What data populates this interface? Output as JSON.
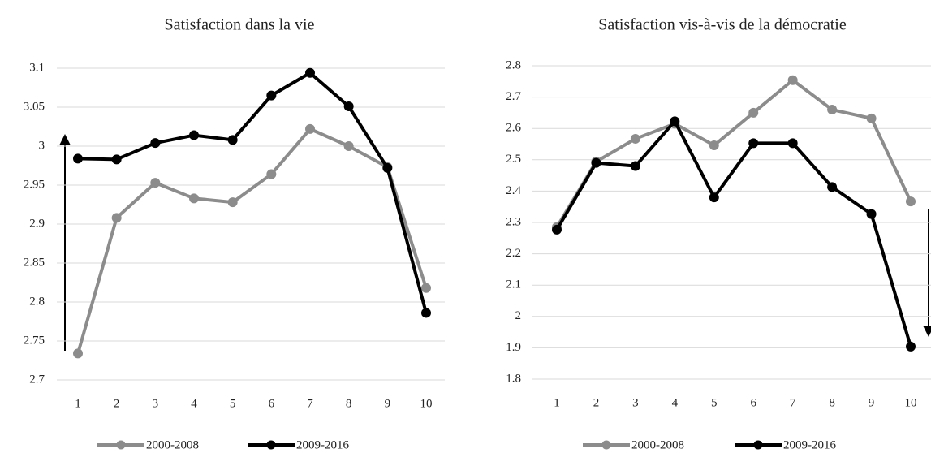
{
  "chart_data": [
    {
      "type": "line",
      "title": "Satisfaction dans la vie",
      "categories": [
        "1",
        "2",
        "3",
        "4",
        "5",
        "6",
        "7",
        "8",
        "9",
        "10"
      ],
      "series": [
        {
          "name": "2000-2008",
          "color": "#8c8c8c",
          "values": [
            2.734,
            2.908,
            2.953,
            2.933,
            2.928,
            2.964,
            3.022,
            3.0,
            2.973,
            2.818
          ]
        },
        {
          "name": "2009-2016",
          "color": "#000000",
          "values": [
            2.984,
            2.983,
            3.004,
            3.014,
            3.008,
            3.065,
            3.094,
            3.051,
            2.972,
            2.786
          ]
        }
      ],
      "ylim": [
        2.7,
        3.1
      ],
      "yticks": [
        2.7,
        2.75,
        2.8,
        2.85,
        2.9,
        2.95,
        3,
        3.05,
        3.1
      ],
      "grid": true,
      "legend": "bottom"
    },
    {
      "type": "line",
      "title": "Satisfaction vis-à-vis de la démocratie",
      "categories": [
        "1",
        "2",
        "3",
        "4",
        "5",
        "6",
        "7",
        "8",
        "9",
        "10"
      ],
      "series": [
        {
          "name": "2000-2008",
          "color": "#8c8c8c",
          "values": [
            2.285,
            2.494,
            2.567,
            2.615,
            2.546,
            2.65,
            2.754,
            2.66,
            2.632,
            2.367
          ]
        },
        {
          "name": "2009-2016",
          "color": "#000000",
          "values": [
            2.277,
            2.49,
            2.48,
            2.623,
            2.38,
            2.553,
            2.553,
            2.413,
            2.327,
            1.904
          ]
        }
      ],
      "ylim": [
        1.8,
        2.8
      ],
      "yticks": [
        1.8,
        1.9,
        2,
        2.1,
        2.2,
        2.3,
        2.4,
        2.5,
        2.6,
        2.7,
        2.8
      ],
      "grid": true,
      "legend": "bottom"
    }
  ]
}
